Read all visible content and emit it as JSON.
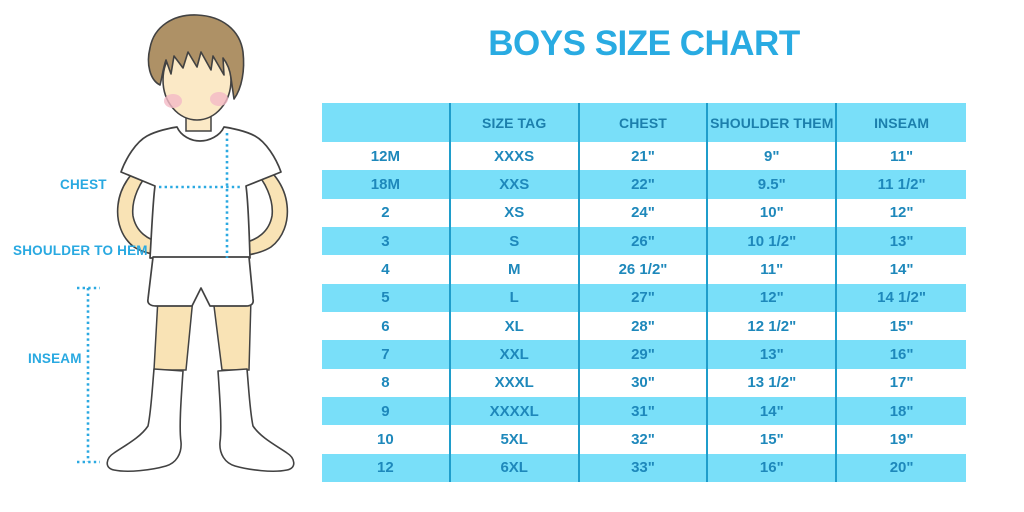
{
  "title": "BOYS SIZE CHART",
  "colors": {
    "accent_blue": "#29ABE2",
    "table_text": "#1E88BB",
    "row_alt_bg": "#79DFF9",
    "row_bg": "#FFFFFF",
    "column_border": "#1F9DCB",
    "hair": "#AE9166",
    "skin_face": "#FBE9C6",
    "skin_limbs": "#F9E3B5",
    "cheek": "#F4B9C6",
    "outline": "#424242"
  },
  "figure": {
    "illustration": "boy-in-white-tshirt-shorts-knee-socks",
    "labels": {
      "chest": "CHEST",
      "shoulder_to_hem": "SHOULDER TO HEM",
      "inseam": "INSEAM"
    }
  },
  "chart_data": {
    "type": "table",
    "title": "BOYS SIZE CHART",
    "columns": [
      "",
      "SIZE TAG",
      "CHEST",
      "SHOULDER THEM",
      "INSEAM"
    ],
    "rows": [
      [
        "12M",
        "XXXS",
        "21\"",
        "9\"",
        "11\""
      ],
      [
        "18M",
        "XXS",
        "22\"",
        "9.5\"",
        "11 1/2\""
      ],
      [
        "2",
        "XS",
        "24\"",
        "10\"",
        "12\""
      ],
      [
        "3",
        "S",
        "26\"",
        "10 1/2\"",
        "13\""
      ],
      [
        "4",
        "M",
        "26 1/2\"",
        "11\"",
        "14\""
      ],
      [
        "5",
        "L",
        "27\"",
        "12\"",
        "14 1/2\""
      ],
      [
        "6",
        "XL",
        "28\"",
        "12 1/2\"",
        "15\""
      ],
      [
        "7",
        "XXL",
        "29\"",
        "13\"",
        "16\""
      ],
      [
        "8",
        "XXXL",
        "30\"",
        "13 1/2\"",
        "17\""
      ],
      [
        "9",
        "XXXXL",
        "31\"",
        "14\"",
        "18\""
      ],
      [
        "10",
        "5XL",
        "32\"",
        "15\"",
        "19\""
      ],
      [
        "12",
        "6XL",
        "33\"",
        "16\"",
        "20\""
      ]
    ],
    "layout": {
      "stripe": "white/blue alternating, header blue",
      "borders": "vertical column separators only"
    }
  }
}
